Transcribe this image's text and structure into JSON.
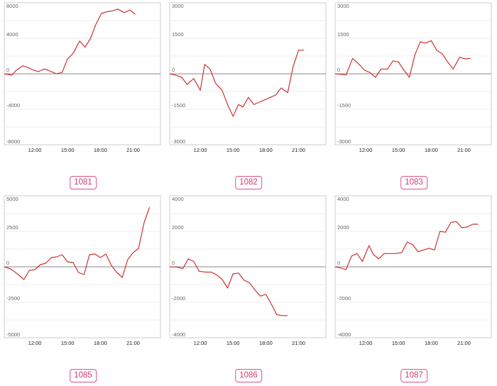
{
  "accent_colors": {
    "line": "#cc3333",
    "badge": "#d9557e",
    "frame": "#cccccc",
    "grid": "#eeeeee",
    "zero": "#888888"
  },
  "chart_data": [
    {
      "type": "line",
      "label": "1081",
      "ylim": [
        -8000,
        8000
      ],
      "yticks": [
        8000,
        4000,
        0,
        -4000,
        -8000
      ],
      "xlim": [
        9.2,
        23.5
      ],
      "xticks": [
        "12:00",
        "15:00",
        "18:00",
        "21:00"
      ],
      "x": [
        9.2,
        9.9,
        10.3,
        10.9,
        11.4,
        11.8,
        12.3,
        12.9,
        13.5,
        14.0,
        14.5,
        15.0,
        15.5,
        16.1,
        16.6,
        17.1,
        17.6,
        18.1,
        18.6,
        19.1,
        19.6,
        20.2,
        20.7,
        21.2
      ],
      "values": [
        0,
        -150,
        400,
        900,
        700,
        450,
        250,
        550,
        250,
        0,
        150,
        1700,
        2300,
        3700,
        3000,
        4000,
        5600,
        6800,
        7000,
        7100,
        7300,
        6900,
        7200,
        6700
      ],
      "grid": true
    },
    {
      "type": "line",
      "label": "1082",
      "ylim": [
        -3000,
        3000
      ],
      "yticks": [
        3000,
        1500,
        0,
        -1500,
        -3000
      ],
      "xlim": [
        9.2,
        23.5
      ],
      "xticks": [
        "12:00",
        "15:00",
        "18:00",
        "21:00"
      ],
      "x": [
        9.2,
        9.7,
        10.3,
        10.8,
        11.4,
        12.0,
        12.4,
        12.9,
        13.4,
        14.0,
        14.5,
        15.0,
        15.5,
        15.9,
        16.4,
        16.9,
        17.4,
        17.9,
        18.4,
        18.9,
        19.4,
        20.0,
        20.5,
        21.0,
        21.5
      ],
      "values": [
        0,
        -50,
        -150,
        -450,
        -200,
        -700,
        400,
        200,
        -400,
        -700,
        -1300,
        -1800,
        -1300,
        -1400,
        -1000,
        -1300,
        -1200,
        -1100,
        -1000,
        -900,
        -600,
        -800,
        300,
        1000,
        1000
      ],
      "grid": true
    },
    {
      "type": "line",
      "label": "1083",
      "ylim": [
        -3000,
        3000
      ],
      "yticks": [
        3000,
        1500,
        0,
        -1500,
        -3000
      ],
      "xlim": [
        9.2,
        23.5
      ],
      "xticks": [
        "12:00",
        "15:00",
        "18:00",
        "21:00"
      ],
      "x": [
        9.2,
        9.7,
        10.2,
        10.8,
        11.4,
        11.9,
        12.4,
        12.9,
        13.4,
        14.0,
        14.5,
        15.0,
        15.5,
        16.0,
        16.5,
        17.0,
        17.5,
        18.0,
        18.5,
        19.0,
        19.5,
        20.0,
        20.6,
        21.1,
        21.6
      ],
      "values": [
        0,
        -20,
        -50,
        650,
        400,
        150,
        50,
        -150,
        200,
        200,
        550,
        500,
        150,
        -150,
        800,
        1350,
        1300,
        1400,
        1000,
        850,
        500,
        200,
        700,
        630,
        650
      ],
      "grid": true
    },
    {
      "type": "line",
      "label": "1085",
      "ylim": [
        -5000,
        5000
      ],
      "yticks": [
        5000,
        2500,
        0,
        -2500,
        -5000
      ],
      "xlim": [
        9.2,
        23.5
      ],
      "xticks": [
        "12:00",
        "15:00",
        "18:00",
        "21:00"
      ],
      "x": [
        9.2,
        9.8,
        10.4,
        11.0,
        11.5,
        12.0,
        12.5,
        13.0,
        13.5,
        14.0,
        14.5,
        15.0,
        15.5,
        16.0,
        16.5,
        17.0,
        17.5,
        18.0,
        18.5,
        19.0,
        19.5,
        20.0,
        20.5,
        21.0,
        21.5,
        22.0,
        22.5
      ],
      "values": [
        0,
        -150,
        -500,
        -900,
        -250,
        -200,
        150,
        250,
        650,
        700,
        850,
        350,
        300,
        -400,
        -550,
        850,
        900,
        650,
        900,
        100,
        -400,
        -750,
        500,
        1000,
        1300,
        3100,
        4200
      ],
      "grid": true
    },
    {
      "type": "line",
      "label": "1086",
      "ylim": [
        -4000,
        4000
      ],
      "yticks": [
        4000,
        2000,
        0,
        -2000,
        -4000
      ],
      "xlim": [
        9.2,
        23.5
      ],
      "xticks": [
        "12:00",
        "15:00",
        "18:00",
        "21:00"
      ],
      "x": [
        9.2,
        9.8,
        10.4,
        10.9,
        11.4,
        11.9,
        12.5,
        13.0,
        13.5,
        14.0,
        14.5,
        15.0,
        15.5,
        16.0,
        16.5,
        17.0,
        17.5,
        18.0,
        18.5,
        19.0,
        19.5,
        20.0
      ],
      "values": [
        0,
        -10,
        -100,
        450,
        300,
        -250,
        -300,
        -300,
        -450,
        -700,
        -1200,
        -400,
        -350,
        -750,
        -900,
        -1300,
        -1650,
        -1550,
        -2100,
        -2700,
        -2750,
        -2750
      ],
      "grid": true
    },
    {
      "type": "line",
      "label": "1087",
      "ylim": [
        -4000,
        4000
      ],
      "yticks": [
        4000,
        2000,
        0,
        -2000,
        -4000
      ],
      "xlim": [
        9.2,
        23.5
      ],
      "xticks": [
        "12:00",
        "15:00",
        "18:00",
        "21:00"
      ],
      "x": [
        9.2,
        9.6,
        10.2,
        10.7,
        11.2,
        11.7,
        12.3,
        12.7,
        13.2,
        13.7,
        14.2,
        14.7,
        15.3,
        15.8,
        16.3,
        16.8,
        17.3,
        17.8,
        18.3,
        18.8,
        19.3,
        19.8,
        20.3,
        20.8,
        21.3,
        21.8,
        22.3
      ],
      "values": [
        0,
        -50,
        -150,
        600,
        750,
        300,
        1200,
        700,
        450,
        750,
        750,
        750,
        800,
        1400,
        1250,
        850,
        950,
        1050,
        950,
        2000,
        1950,
        2500,
        2550,
        2200,
        2250,
        2400,
        2400
      ],
      "grid": true
    }
  ]
}
